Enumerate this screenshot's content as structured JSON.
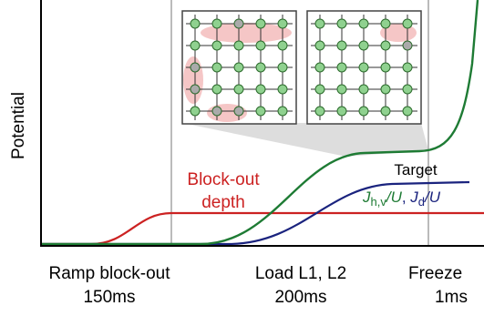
{
  "axis": {
    "y_label": "Potential"
  },
  "phases": [
    {
      "name": "Ramp block-out",
      "duration": "150ms"
    },
    {
      "name": "Load L1, L2",
      "duration": "200ms"
    },
    {
      "name": "Freeze",
      "duration": "1ms"
    }
  ],
  "annotations": {
    "block_out": [
      "Block-out",
      "depth"
    ],
    "target": "Target",
    "couplings": {
      "jhv": {
        "symbol": "J",
        "subscript": "h,v",
        "suffix": "/U"
      },
      "separator": ", ",
      "jd": {
        "symbol": "J",
        "subscript": "d",
        "suffix": "/U"
      }
    }
  }
}
